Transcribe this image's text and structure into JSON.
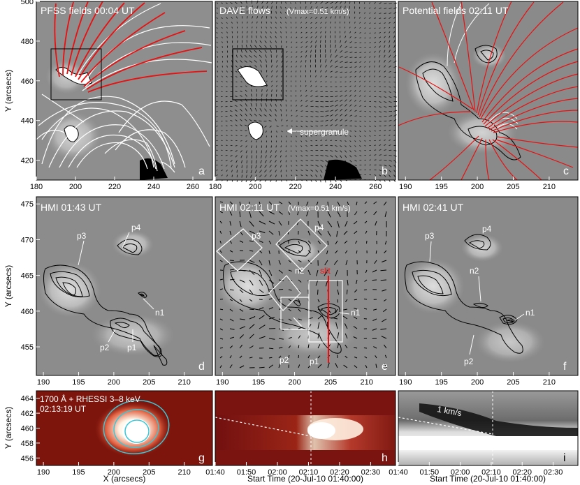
{
  "figure": {
    "panels": [
      {
        "letter": "a",
        "title": "PFSS fields 00:04 UT",
        "kind": "magnetogram"
      },
      {
        "letter": "b",
        "title": "DAVE flows",
        "vmax": "(Vmax=0.51 km/s)",
        "annotation": "supergranule",
        "kind": "flows"
      },
      {
        "letter": "c",
        "title": "Potential fields 02:11 UT",
        "kind": "magnetogram"
      },
      {
        "letter": "d",
        "title": "HMI 01:43 UT",
        "labels": [
          "p3",
          "p4",
          "n1",
          "p2",
          "p1"
        ],
        "kind": "contours"
      },
      {
        "letter": "e",
        "title": "HMI 02:11 UT",
        "vmax": "(Vmax=0.51 km/s)",
        "labels": [
          "p3",
          "p4",
          "n2",
          "slit",
          "n1",
          "p2",
          "p1"
        ],
        "kind": "contours"
      },
      {
        "letter": "f",
        "title": "HMI 02:41 UT",
        "labels": [
          "p3",
          "p4",
          "n2",
          "n1",
          "p2"
        ],
        "kind": "contours"
      },
      {
        "letter": "g",
        "title_line1": "1700 Å + RHESSI 3–8 keV",
        "title_line2": "02:13:19 UT",
        "kind": "uv"
      },
      {
        "letter": "h",
        "kind": "timeslice"
      },
      {
        "letter": "i",
        "annotation": "1 km/s",
        "kind": "timeslice"
      }
    ],
    "axis_labels": {
      "y": "Y (arcsecs)",
      "x": "X (arcsecs)",
      "time": "Start Time (20-Jul-10 01:40:00)"
    },
    "colors": {
      "red_field": "#e81010",
      "contour": "#000000",
      "cyan_contour": "#38c8d8",
      "slit": "#e81010"
    }
  },
  "chart_data": [
    {
      "type": "heatmap",
      "panel": "a",
      "title": "PFSS fields 00:04 UT",
      "xlim": [
        180,
        270
      ],
      "ylim": [
        410,
        500
      ],
      "x_ticks": [
        180,
        200,
        220,
        240,
        260
      ],
      "y_ticks": [
        420,
        440,
        460,
        480,
        500
      ]
    },
    {
      "type": "heatmap",
      "panel": "b",
      "title": "DAVE flows (Vmax=0.51 km/s)",
      "xlim": [
        180,
        270
      ],
      "ylim": [
        410,
        500
      ],
      "x_ticks": [
        180,
        200,
        220,
        240,
        260
      ],
      "annotation": "supergranule"
    },
    {
      "type": "heatmap",
      "panel": "c",
      "title": "Potential fields 02:11 UT",
      "xlim": [
        189,
        214
      ],
      "ylim": [
        410,
        500
      ],
      "x_ticks": [
        190,
        195,
        200,
        205,
        210
      ]
    },
    {
      "type": "heatmap",
      "panel": "d",
      "title": "HMI 01:43 UT",
      "xlim": [
        189,
        214
      ],
      "ylim": [
        451,
        476
      ],
      "x_ticks": [
        190,
        195,
        200,
        205,
        210
      ],
      "y_ticks": [
        455,
        460,
        465,
        470,
        475
      ]
    },
    {
      "type": "heatmap",
      "panel": "e",
      "title": "HMI 02:11 UT (Vmax=0.51 km/s)",
      "xlim": [
        189,
        214
      ],
      "ylim": [
        451,
        476
      ],
      "x_ticks": [
        190,
        195,
        200,
        205,
        210
      ]
    },
    {
      "type": "heatmap",
      "panel": "f",
      "title": "HMI 02:41 UT",
      "xlim": [
        189,
        214
      ],
      "ylim": [
        451,
        476
      ],
      "x_ticks": [
        190,
        195,
        200,
        205,
        210
      ]
    },
    {
      "type": "heatmap",
      "panel": "g",
      "title": "1700 Å + RHESSI 3–8 keV 02:13:19 UT",
      "xlim": [
        189,
        214
      ],
      "ylim": [
        455,
        465
      ],
      "x_ticks": [
        190,
        195,
        200,
        205,
        210
      ],
      "y_ticks": [
        456,
        458,
        460,
        462,
        464
      ],
      "xlabel": "X (arcsecs)",
      "ylabel": "Y (arcsecs)"
    },
    {
      "type": "heatmap",
      "panel": "h",
      "time_ticks": [
        "01:40",
        "01:50",
        "02:00",
        "02:10",
        "02:20",
        "02:30"
      ],
      "xlabel": "Start Time (20-Jul-10 01:40:00)"
    },
    {
      "type": "heatmap",
      "panel": "i",
      "time_ticks": [
        "01:40",
        "01:50",
        "02:00",
        "02:10",
        "02:20",
        "02:30"
      ],
      "xlabel": "Start Time (20-Jul-10 01:40:00)",
      "annotation": "1 km/s"
    }
  ]
}
